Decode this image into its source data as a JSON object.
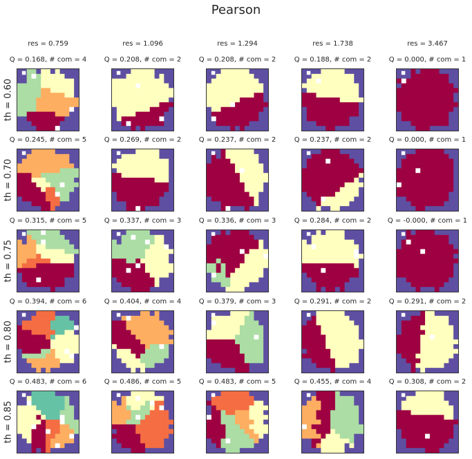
{
  "chart_data": {
    "type": "heatmap",
    "title": "Pearson",
    "column_labels": [
      "res = 0.759",
      "res = 1.096",
      "res = 1.294",
      "res = 1.738",
      "res = 3.467"
    ],
    "row_labels": [
      "th = 0.60",
      "th = 0.70",
      "th = 0.75",
      "th = 0.80",
      "th = 0.85"
    ],
    "panel_labels": [
      [
        "Q = 0.168,  # com = 4",
        "Q = 0.208,  # com = 2",
        "Q = 0.208,  # com = 2",
        "Q = 0.188,  # com = 2",
        "Q = 0.000,  # com = 1"
      ],
      [
        "Q = 0.245,  # com = 5",
        "Q = 0.269,  # com = 2",
        "Q = 0.237,  # com = 2",
        "Q = 0.237,  # com = 2",
        "Q = 0.000,  # com = 1"
      ],
      [
        "Q = 0.315,  # com = 5",
        "Q = 0.337,  # com = 3",
        "Q = 0.336,  # com = 3",
        "Q = 0.284,  # com = 2",
        "Q = -0.000,  # com = 1"
      ],
      [
        "Q = 0.394,  # com = 6",
        "Q = 0.404,  # com = 4",
        "Q = 0.379,  # com = 3",
        "Q = 0.291,  # com = 2",
        "Q = 0.291,  # com = 2"
      ],
      [
        "Q = 0.483,  # com = 6",
        "Q = 0.486,  # com = 5",
        "Q = 0.483,  # com = 5",
        "Q = 0.455,  # com = 4",
        "Q = 0.308,  # com = 2"
      ]
    ],
    "com_counts": [
      [
        4,
        2,
        2,
        2,
        1
      ],
      [
        5,
        2,
        2,
        2,
        1
      ],
      [
        5,
        3,
        3,
        2,
        1
      ],
      [
        6,
        4,
        3,
        2,
        2
      ],
      [
        6,
        5,
        5,
        4,
        2
      ]
    ],
    "palette": [
      "#9e0142",
      "#ffffbf",
      "#abdda4",
      "#fdae61",
      "#f46d43",
      "#66c2a5"
    ],
    "background_color": "#5e4fa2",
    "xticks": [],
    "yticks": []
  }
}
